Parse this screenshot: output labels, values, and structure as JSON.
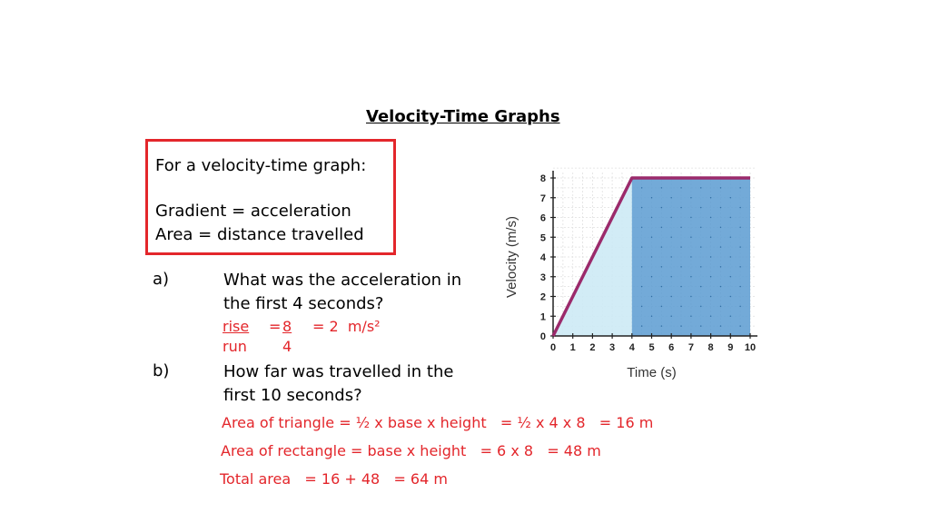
{
  "title": "Velocity-Time Graphs",
  "definition": {
    "heading": "For a velocity-time graph:",
    "gradient_line": "Gradient = acceleration",
    "area_line": "Area = distance travelled"
  },
  "question_a": {
    "label": "a)",
    "line1": "What was the acceleration in",
    "line2": "the first 4 seconds?",
    "work_rise": "rise",
    "work_eq1": "=",
    "work_num": "8",
    "work_result": "= 2  m/s²",
    "work_run": "run",
    "work_den": "4"
  },
  "question_b": {
    "label": "b)",
    "line1": "How far was travelled in the",
    "line2": "first 10 seconds?",
    "triangle": "Area of triangle = ½ x base x height   = ½ x 4 x 8   = 16 m",
    "rectangle": "Area of rectangle = base x height   = 6 x 8   = 48 m",
    "total": "Total area   = 16 + 48   = 64 m"
  },
  "chart_data": {
    "type": "line",
    "x": [
      0,
      4,
      10
    ],
    "y": [
      0,
      8,
      8
    ],
    "xlabel": "Time (s)",
    "ylabel": "Velocity (m/s)",
    "xlim": [
      0,
      10
    ],
    "ylim": [
      0,
      8
    ],
    "xticks": [
      "0",
      "1",
      "2",
      "3",
      "4",
      "5",
      "6",
      "7",
      "8",
      "9",
      "10"
    ],
    "yticks": [
      "0",
      "1",
      "2",
      "3",
      "4",
      "5",
      "6",
      "7",
      "8"
    ],
    "grid": true,
    "line_color": "#9b2a6b",
    "triangle_fill": "#cdeaf5",
    "rectangle_fill": "#5b9bd1"
  }
}
